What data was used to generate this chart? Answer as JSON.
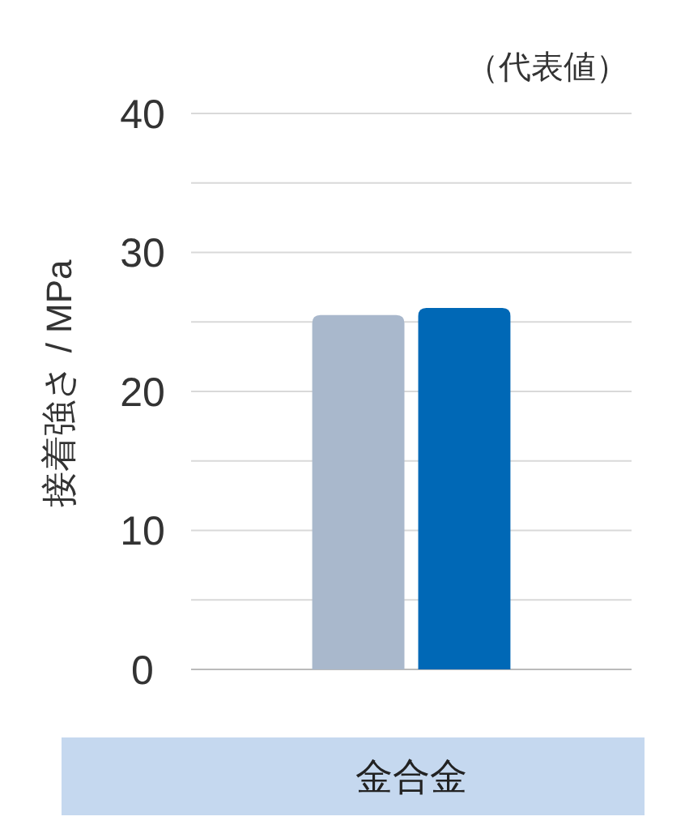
{
  "chart_data": {
    "type": "bar",
    "subtitle": "（代表値）",
    "ylabel": "接着強さ / MPa",
    "categories": [
      "金合金"
    ],
    "series": [
      {
        "color": "#a9b8cc",
        "values": [
          25.5
        ]
      },
      {
        "color": "#0068b6",
        "values": [
          26
        ]
      }
    ],
    "ylim": [
      0,
      40
    ],
    "yticks": [
      0,
      {
        "value": 5,
        "label": null
      },
      10,
      {
        "value": 15,
        "label": null
      },
      20,
      {
        "value": 25,
        "label": null
      },
      30,
      {
        "value": 35,
        "label": null
      },
      40
    ],
    "grid": "y"
  }
}
